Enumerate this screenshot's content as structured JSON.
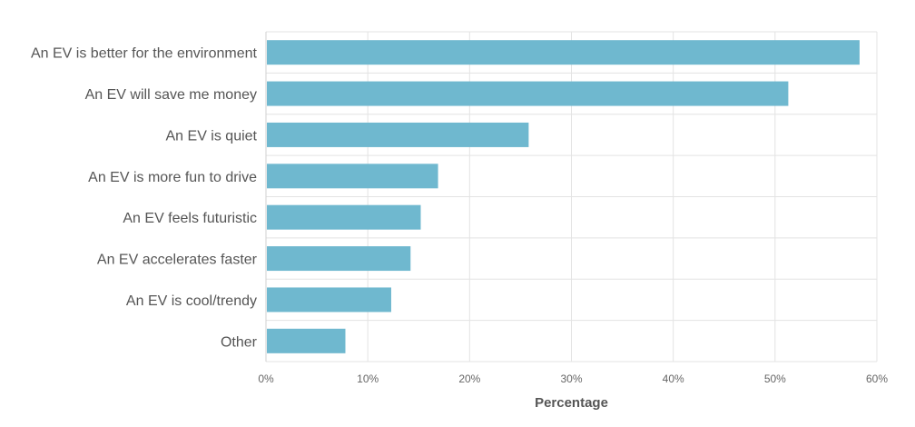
{
  "chart_data": {
    "type": "bar",
    "orientation": "horizontal",
    "categories": [
      "An EV is better for the environment",
      "An EV will save me money",
      "An EV is quiet",
      "An EV is more fun to drive",
      "An EV feels futuristic",
      "An EV accelerates faster",
      "An EV is cool/trendy",
      "Other"
    ],
    "values": [
      58.3,
      51.3,
      25.8,
      16.9,
      15.2,
      14.2,
      12.3,
      7.8
    ],
    "xlabel": "Percentage",
    "ylabel": "",
    "xlim": [
      0,
      60
    ],
    "x_ticks": [
      "0%",
      "10%",
      "20%",
      "30%",
      "40%",
      "50%",
      "60%"
    ],
    "grid": true,
    "legend": "none",
    "bar_color": "#6fb8cf"
  }
}
